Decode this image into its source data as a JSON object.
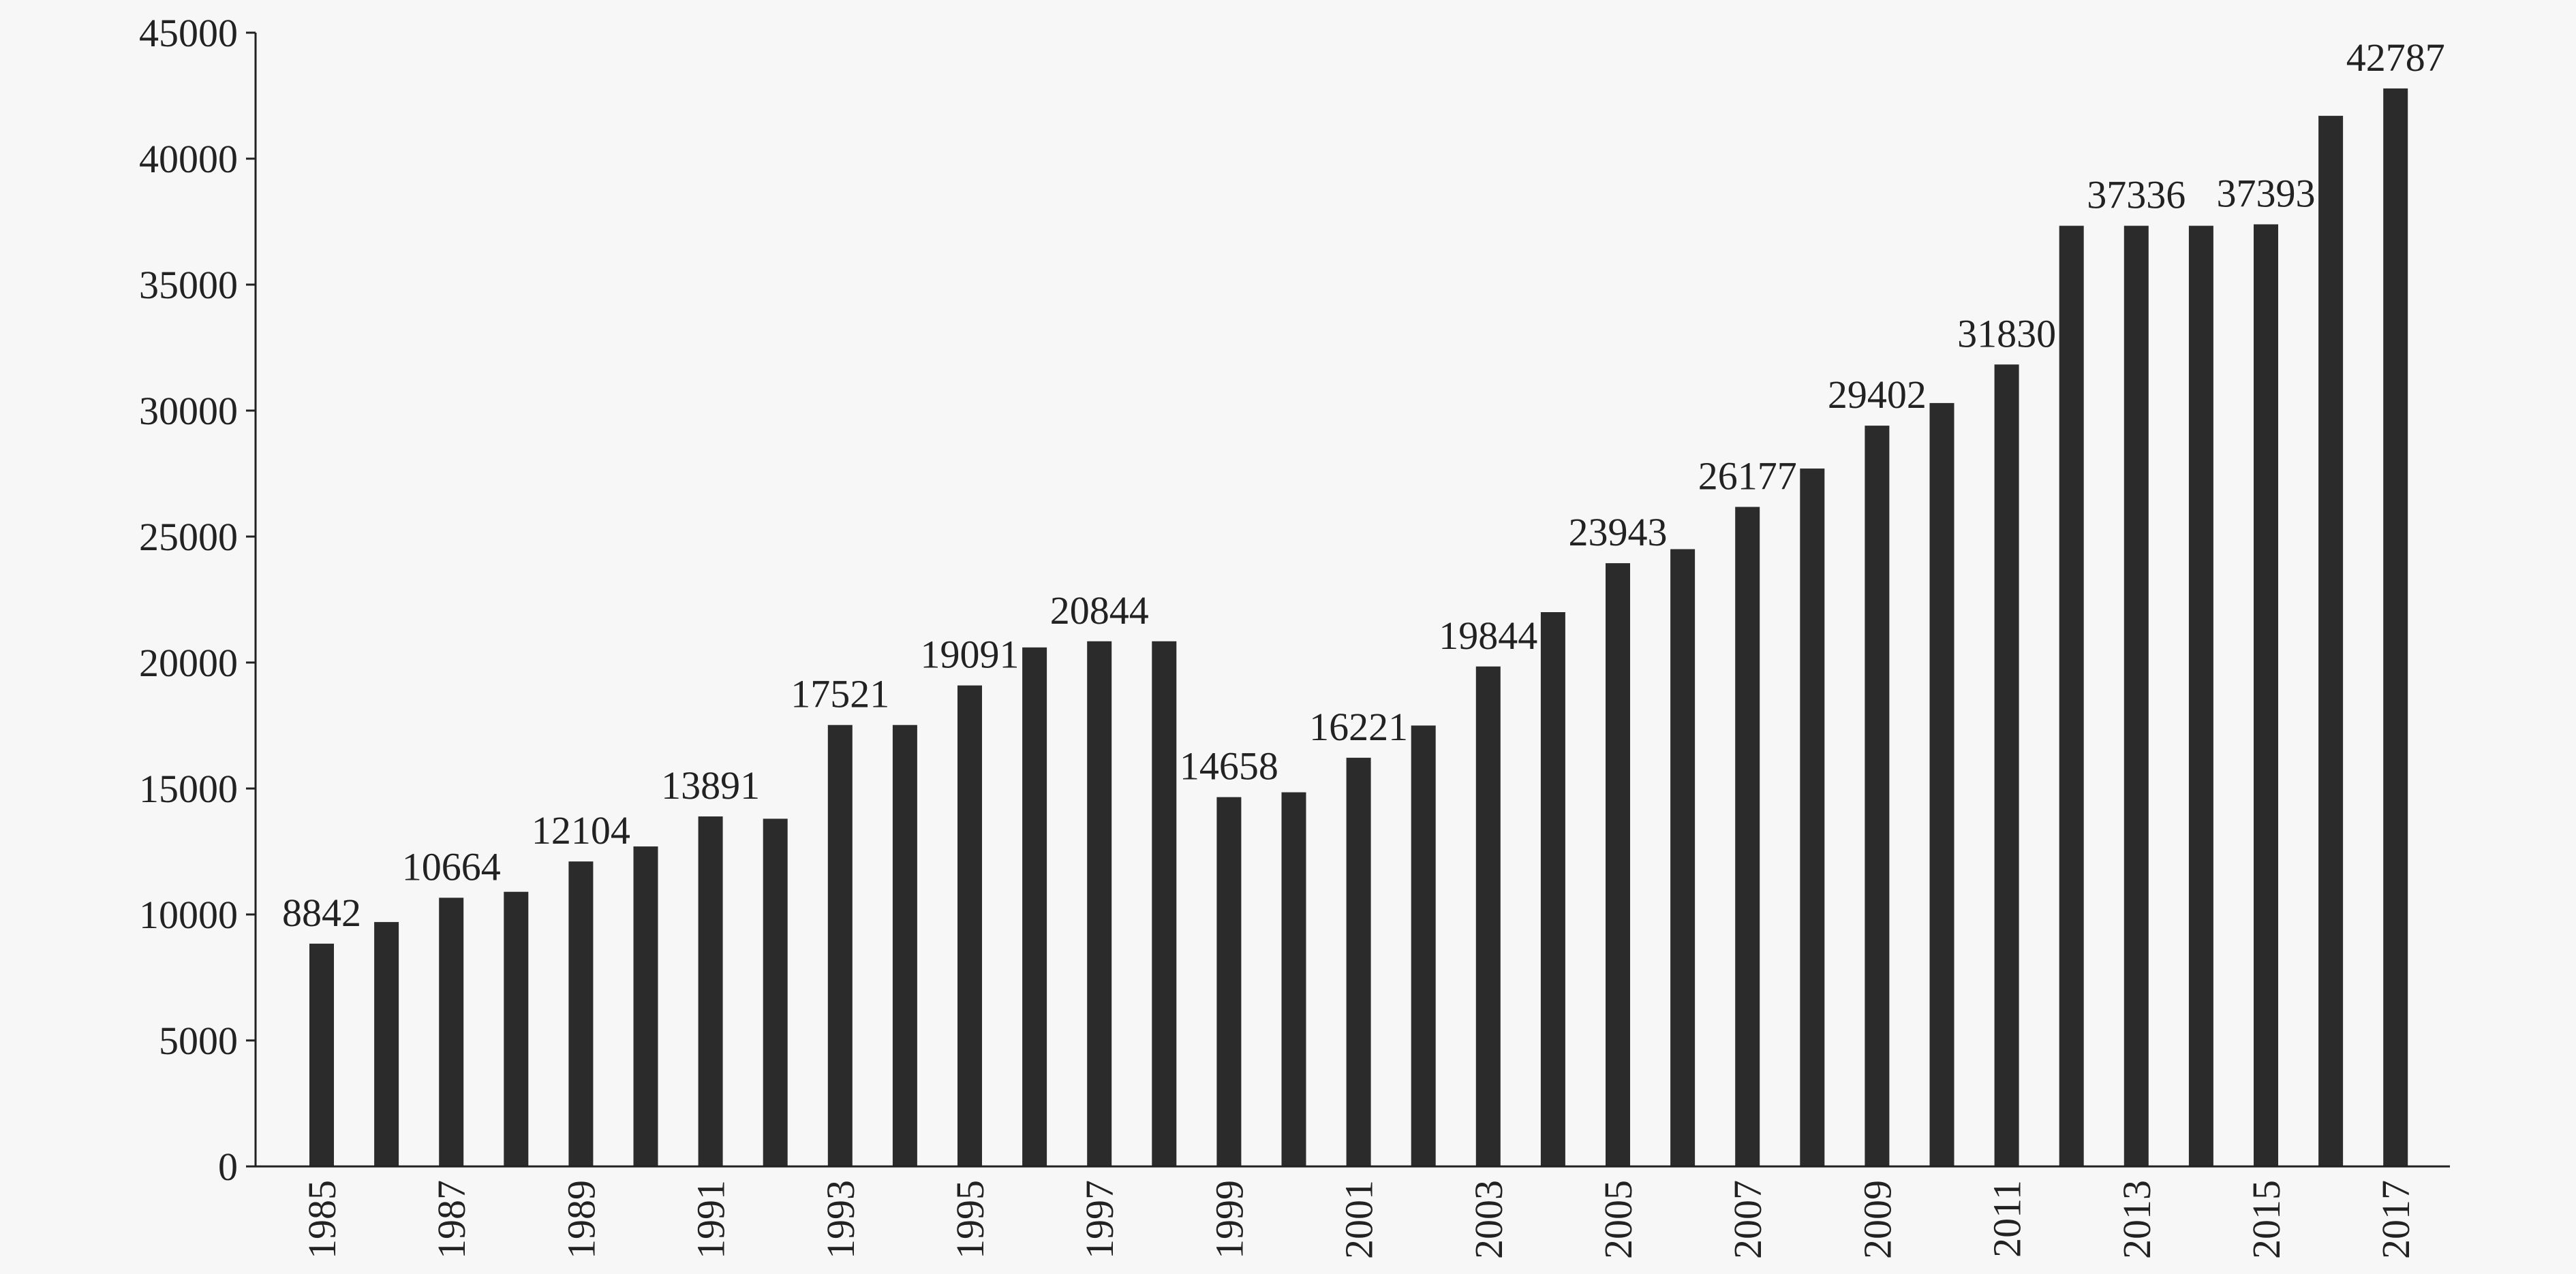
{
  "chart_data": {
    "type": "bar",
    "title": "",
    "xlabel": "",
    "ylabel": "",
    "ylim": [
      0,
      45000
    ],
    "yticks": [
      0,
      5000,
      10000,
      15000,
      20000,
      25000,
      30000,
      35000,
      40000,
      45000
    ],
    "grid": false,
    "legend": "none",
    "bar_color": "#2b2b2b",
    "axis_color": "#222222",
    "categories": [
      "1985",
      "1986",
      "1987",
      "1988",
      "1989",
      "1990",
      "1991",
      "1992",
      "1993",
      "1994",
      "1995",
      "1996",
      "1997",
      "1998",
      "1999",
      "2000",
      "2001",
      "2002",
      "2003",
      "2004",
      "2005",
      "2006",
      "2007",
      "2008",
      "2009",
      "2010",
      "2011",
      "2012",
      "2013",
      "2014",
      "2015",
      "2016",
      "2017"
    ],
    "xtick_labels": [
      "1985",
      "",
      "1987",
      "",
      "1989",
      "",
      "1991",
      "",
      "1993",
      "",
      "1995",
      "",
      "1997",
      "",
      "1999",
      "",
      "2001",
      "",
      "2003",
      "",
      "2005",
      "",
      "2007",
      "",
      "2009",
      "",
      "2011",
      "",
      "2013",
      "",
      "2015",
      "",
      "2017"
    ],
    "values": [
      8842,
      9700,
      10664,
      10900,
      12104,
      12700,
      13891,
      13800,
      17521,
      17521,
      19091,
      20600,
      20844,
      20844,
      14658,
      14850,
      16221,
      17500,
      19844,
      22000,
      23943,
      24500,
      26177,
      27700,
      29402,
      30300,
      31830,
      37336,
      37336,
      37336,
      37393,
      41700,
      42787
    ],
    "data_labels": [
      "8842",
      "",
      "10664",
      "",
      "12104",
      "",
      "13891",
      "",
      "17521",
      "",
      "19091",
      "",
      "20844",
      "",
      "14658",
      "",
      "16221",
      "",
      "19844",
      "",
      "23943",
      "",
      "26177",
      "",
      "29402",
      "",
      "31830",
      "",
      "37336",
      "",
      "37393",
      "",
      "42787"
    ]
  }
}
